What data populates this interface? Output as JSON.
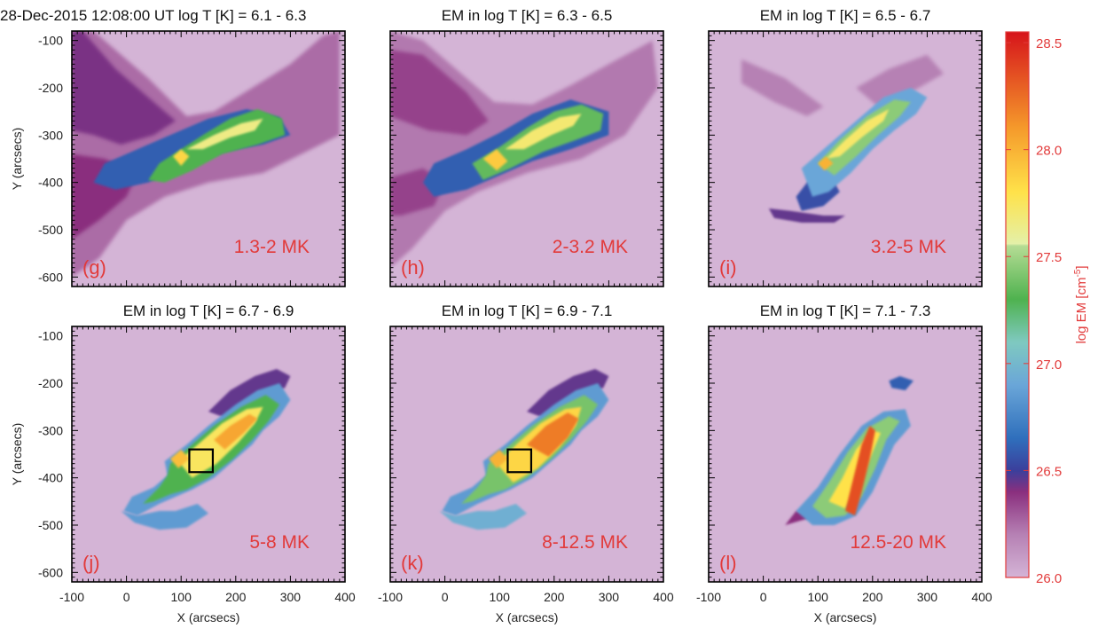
{
  "chart_data": {
    "type": "heatmap",
    "date_label": "28-Dec-2015 12:08:00 UT",
    "panels": [
      {
        "id": "g",
        "label": "(g)",
        "title": "log T [K] = 6.1 - 6.3",
        "temperature_label": "1.3-2 MK",
        "logT_range": [
          6.1,
          6.3
        ],
        "box": null
      },
      {
        "id": "h",
        "label": "(h)",
        "title": "EM in log T [K] = 6.3 - 6.5",
        "temperature_label": "2-3.2 MK",
        "logT_range": [
          6.3,
          6.5
        ],
        "box": null
      },
      {
        "id": "i",
        "label": "(i)",
        "title": "EM in log T [K] = 6.5 - 6.7",
        "temperature_label": "3.2-5 MK",
        "logT_range": [
          6.5,
          6.7
        ],
        "box": null
      },
      {
        "id": "j",
        "label": "(j)",
        "title": "EM in log T [K] = 6.7 - 6.9",
        "temperature_label": "5-8 MK",
        "logT_range": [
          6.7,
          6.9
        ],
        "box": {
          "x": [
            115,
            158
          ],
          "y": [
            -388,
            -340
          ]
        }
      },
      {
        "id": "k",
        "label": "(k)",
        "title": "EM in log T [K] = 6.9 - 7.1",
        "temperature_label": "8-12.5 MK",
        "logT_range": [
          6.9,
          7.1
        ],
        "box": {
          "x": [
            115,
            158
          ],
          "y": [
            -388,
            -340
          ]
        }
      },
      {
        "id": "l",
        "label": "(l)",
        "title": "EM in log T [K] = 7.1 - 7.3",
        "temperature_label": "12.5-20 MK",
        "logT_range": [
          7.1,
          7.3
        ],
        "box": null
      }
    ],
    "xlabel": "X (arcsecs)",
    "ylabel": "Y (arcsecs)",
    "xlim": [
      -100,
      400
    ],
    "ylim": [
      -620,
      -80
    ],
    "xticks": [
      -100,
      0,
      100,
      200,
      300,
      400
    ],
    "yticks": [
      -100,
      -200,
      -300,
      -400,
      -500,
      -600
    ],
    "colorbar": {
      "label": "log EM [cm",
      "label_sup": "-5",
      "label_end": "]",
      "range": [
        26.0,
        28.55
      ],
      "ticks": [
        "26.0",
        "26.5",
        "27.0",
        "27.5",
        "28.0",
        "28.5"
      ],
      "tick_values": [
        26.0,
        26.5,
        27.0,
        27.5,
        28.0,
        28.5
      ],
      "stops": [
        {
          "v": 26.0,
          "color": "#d4b4d6"
        },
        {
          "v": 26.2,
          "color": "#b681b4"
        },
        {
          "v": 26.4,
          "color": "#8a2f7e"
        },
        {
          "v": 26.5,
          "color": "#3b3f9c"
        },
        {
          "v": 26.65,
          "color": "#2f6fbc"
        },
        {
          "v": 26.9,
          "color": "#6aa6d8"
        },
        {
          "v": 27.1,
          "color": "#7fc9c0"
        },
        {
          "v": 27.3,
          "color": "#4fb24f"
        },
        {
          "v": 27.55,
          "color": "#b5dc94"
        },
        {
          "v": 27.56,
          "color": "#e4f0a8"
        },
        {
          "v": 27.8,
          "color": "#ffe24a"
        },
        {
          "v": 28.1,
          "color": "#f59a2b"
        },
        {
          "v": 28.55,
          "color": "#d6141b"
        }
      ]
    },
    "colors": {
      "background": "#d4b4d6",
      "annotation": "#e23a3a",
      "box": "#000000"
    }
  }
}
